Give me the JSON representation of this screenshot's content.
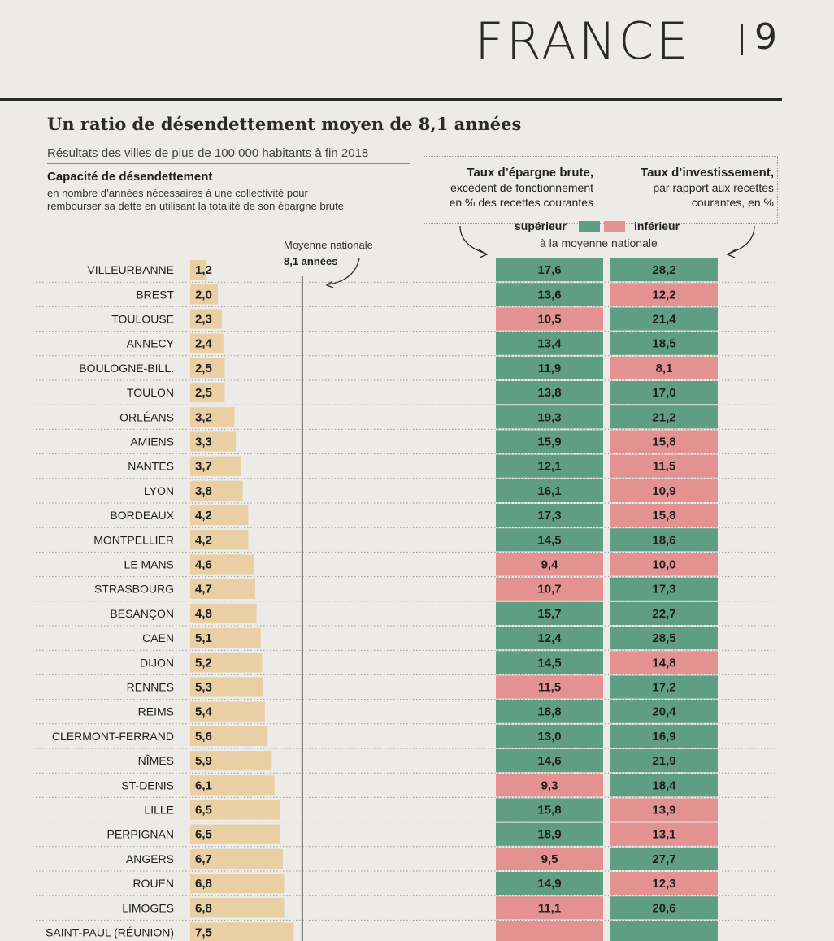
{
  "page_header": {
    "section": "FRANCE",
    "page_number": "9"
  },
  "chart_data": {
    "type": "table",
    "title": "Un ratio de désendettement moyen de 8,1 années",
    "subtitle": "Résultats des villes de plus de 100 000 habitants à fin 2018",
    "left_header": "Capacité de désendettement",
    "left_description": "en nombre d’années nécessaires à une collectivité pour rembourser sa dette en utilisant la totalité de son épargne brute",
    "reference_line": {
      "label": "Moyenne nationale",
      "value_label": "8,1 années",
      "value": 8.1
    },
    "col1_header": {
      "title": "Taux d’épargne brute,",
      "line1": "excédent de fonctionnement",
      "line2": "en % des recettes courantes"
    },
    "col2_header": {
      "title": "Taux d’investissement,",
      "line1": "par rapport aux recettes",
      "line2": "courantes, en %"
    },
    "legend": {
      "above_label": "supérieur",
      "below_label": "inférieur",
      "note": "à la moyenne nationale",
      "above_color": "#5f9e83",
      "below_color": "#e39191"
    },
    "bar_color": "#e9cfa3",
    "rows": [
      {
        "city": "VILLEURBANNE",
        "ratio": "1,2",
        "ratio_value": 1.2,
        "epargne": "17,6",
        "epargne_above": true,
        "invest": "28,2",
        "invest_above": true
      },
      {
        "city": "BREST",
        "ratio": "2,0",
        "ratio_value": 2.0,
        "epargne": "13,6",
        "epargne_above": true,
        "invest": "12,2",
        "invest_above": false
      },
      {
        "city": "TOULOUSE",
        "ratio": "2,3",
        "ratio_value": 2.3,
        "epargne": "10,5",
        "epargne_above": false,
        "invest": "21,4",
        "invest_above": true
      },
      {
        "city": "ANNECY",
        "ratio": "2,4",
        "ratio_value": 2.4,
        "epargne": "13,4",
        "epargne_above": true,
        "invest": "18,5",
        "invest_above": true
      },
      {
        "city": "BOULOGNE-BILL.",
        "ratio": "2,5",
        "ratio_value": 2.5,
        "epargne": "11,9",
        "epargne_above": true,
        "invest": "8,1",
        "invest_above": false
      },
      {
        "city": "TOULON",
        "ratio": "2,5",
        "ratio_value": 2.5,
        "epargne": "13,8",
        "epargne_above": true,
        "invest": "17,0",
        "invest_above": true
      },
      {
        "city": "ORLÉANS",
        "ratio": "3,2",
        "ratio_value": 3.2,
        "epargne": "19,3",
        "epargne_above": true,
        "invest": "21,2",
        "invest_above": true
      },
      {
        "city": "AMIENS",
        "ratio": "3,3",
        "ratio_value": 3.3,
        "epargne": "15,9",
        "epargne_above": true,
        "invest": "15,8",
        "invest_above": false
      },
      {
        "city": "NANTES",
        "ratio": "3,7",
        "ratio_value": 3.7,
        "epargne": "12,1",
        "epargne_above": true,
        "invest": "11,5",
        "invest_above": false
      },
      {
        "city": "LYON",
        "ratio": "3,8",
        "ratio_value": 3.8,
        "epargne": "16,1",
        "epargne_above": true,
        "invest": "10,9",
        "invest_above": false
      },
      {
        "city": "BORDEAUX",
        "ratio": "4,2",
        "ratio_value": 4.2,
        "epargne": "17,3",
        "epargne_above": true,
        "invest": "15,8",
        "invest_above": false
      },
      {
        "city": "MONTPELLIER",
        "ratio": "4,2",
        "ratio_value": 4.2,
        "epargne": "14,5",
        "epargne_above": true,
        "invest": "18,6",
        "invest_above": true
      },
      {
        "city": "LE MANS",
        "ratio": "4,6",
        "ratio_value": 4.6,
        "epargne": "9,4",
        "epargne_above": false,
        "invest": "10,0",
        "invest_above": false
      },
      {
        "city": "STRASBOURG",
        "ratio": "4,7",
        "ratio_value": 4.7,
        "epargne": "10,7",
        "epargne_above": false,
        "invest": "17,3",
        "invest_above": true
      },
      {
        "city": "BESANÇON",
        "ratio": "4,8",
        "ratio_value": 4.8,
        "epargne": "15,7",
        "epargne_above": true,
        "invest": "22,7",
        "invest_above": true
      },
      {
        "city": "CAEN",
        "ratio": "5,1",
        "ratio_value": 5.1,
        "epargne": "12,4",
        "epargne_above": true,
        "invest": "28,5",
        "invest_above": true
      },
      {
        "city": "DIJON",
        "ratio": "5,2",
        "ratio_value": 5.2,
        "epargne": "14,5",
        "epargne_above": true,
        "invest": "14,8",
        "invest_above": false
      },
      {
        "city": "RENNES",
        "ratio": "5,3",
        "ratio_value": 5.3,
        "epargne": "11,5",
        "epargne_above": false,
        "invest": "17,2",
        "invest_above": true
      },
      {
        "city": "REIMS",
        "ratio": "5,4",
        "ratio_value": 5.4,
        "epargne": "18,8",
        "epargne_above": true,
        "invest": "20,4",
        "invest_above": true
      },
      {
        "city": "CLERMONT-FERRAND",
        "ratio": "5,6",
        "ratio_value": 5.6,
        "epargne": "13,0",
        "epargne_above": true,
        "invest": "16,9",
        "invest_above": true
      },
      {
        "city": "NÎMES",
        "ratio": "5,9",
        "ratio_value": 5.9,
        "epargne": "14,6",
        "epargne_above": true,
        "invest": "21,9",
        "invest_above": true
      },
      {
        "city": "ST-DENIS",
        "ratio": "6,1",
        "ratio_value": 6.1,
        "epargne": "9,3",
        "epargne_above": false,
        "invest": "18,4",
        "invest_above": true
      },
      {
        "city": "LILLE",
        "ratio": "6,5",
        "ratio_value": 6.5,
        "epargne": "15,8",
        "epargne_above": true,
        "invest": "13,9",
        "invest_above": false
      },
      {
        "city": "PERPIGNAN",
        "ratio": "6,5",
        "ratio_value": 6.5,
        "epargne": "18,9",
        "epargne_above": true,
        "invest": "13,1",
        "invest_above": false
      },
      {
        "city": "ANGERS",
        "ratio": "6,7",
        "ratio_value": 6.7,
        "epargne": "9,5",
        "epargne_above": false,
        "invest": "27,7",
        "invest_above": true
      },
      {
        "city": "ROUEN",
        "ratio": "6,8",
        "ratio_value": 6.8,
        "epargne": "14,9",
        "epargne_above": true,
        "invest": "12,3",
        "invest_above": false
      },
      {
        "city": "LIMOGES",
        "ratio": "6,8",
        "ratio_value": 6.8,
        "epargne": "11,1",
        "epargne_above": false,
        "invest": "20,6",
        "invest_above": true
      },
      {
        "city": "SAINT-PAUL (RÉUNION)",
        "ratio": "7,5",
        "ratio_value": 7.5,
        "epargne": "",
        "epargne_above": false,
        "invest": "",
        "invest_above": true
      }
    ]
  }
}
